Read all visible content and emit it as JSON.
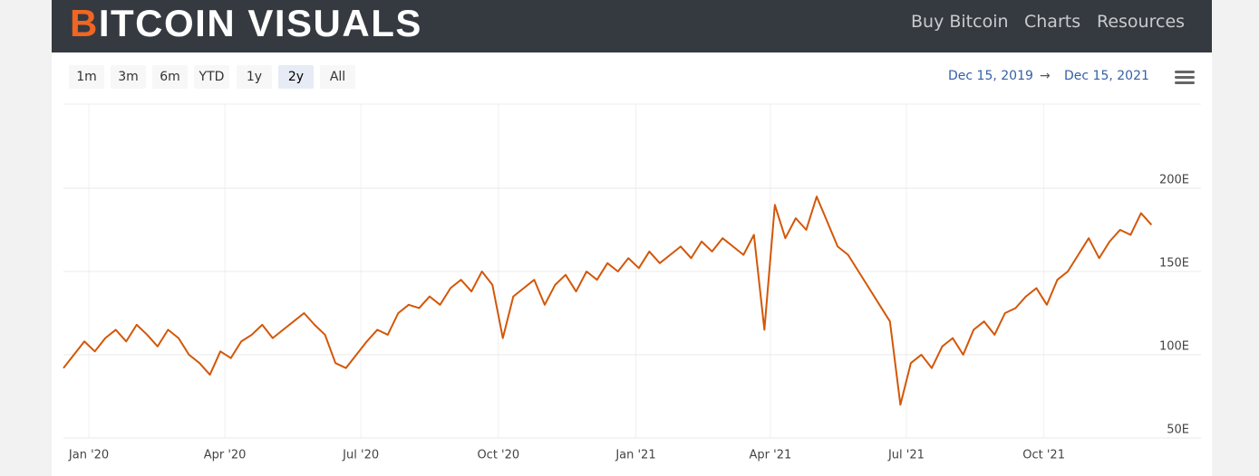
{
  "header": {
    "logo": "BITCOIN VISUALS",
    "nav": [
      "Buy Bitcoin",
      "Charts",
      "Resources"
    ]
  },
  "toolbar": {
    "range_buttons": [
      "1m",
      "3m",
      "6m",
      "YTD",
      "1y",
      "2y",
      "All"
    ],
    "date_from": "Dec 15, 2019",
    "arrow": "→",
    "date_to": "Dec 15, 2021"
  },
  "chart_data": {
    "type": "line",
    "color": "#d35708",
    "grid": true,
    "values": [
      92,
      100,
      108,
      102,
      110,
      115,
      108,
      118,
      112,
      105,
      115,
      110,
      100,
      95,
      88,
      102,
      98,
      108,
      112,
      118,
      110,
      115,
      120,
      125,
      118,
      112,
      95,
      92,
      100,
      108,
      115,
      112,
      125,
      130,
      128,
      135,
      130,
      140,
      145,
      138,
      150,
      142,
      110,
      135,
      140,
      145,
      130,
      142,
      148,
      138,
      150,
      145,
      155,
      150,
      158,
      152,
      162,
      155,
      160,
      165,
      158,
      168,
      162,
      170,
      165,
      160,
      172,
      115,
      190,
      170,
      182,
      175,
      195,
      180,
      165,
      160,
      150,
      140,
      130,
      120,
      70,
      95,
      100,
      92,
      105,
      110,
      100,
      115,
      120,
      112,
      125,
      128,
      135,
      140,
      130,
      145,
      150,
      160,
      170,
      158,
      168,
      175,
      172,
      185,
      178
    ],
    "xlim": [
      0,
      104.4
    ],
    "xticks": [
      {
        "value": 2.43,
        "label": "Jan '20"
      },
      {
        "value": 15.43,
        "label": "Apr '20"
      },
      {
        "value": 28.43,
        "label": "Jul '20"
      },
      {
        "value": 41.57,
        "label": "Oct '20"
      },
      {
        "value": 54.71,
        "label": "Jan '21"
      },
      {
        "value": 67.57,
        "label": "Apr '21"
      },
      {
        "value": 80.57,
        "label": "Jul '21"
      },
      {
        "value": 93.71,
        "label": "Oct '21"
      }
    ],
    "ylim": [
      50,
      250
    ],
    "yticks": [
      {
        "value": 50,
        "label": "50E"
      },
      {
        "value": 100,
        "label": "100E"
      },
      {
        "value": 150,
        "label": "150E"
      },
      {
        "value": 200,
        "label": "200E"
      }
    ]
  }
}
